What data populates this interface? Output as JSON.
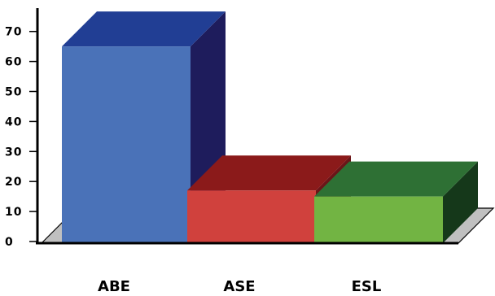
{
  "chart_data": {
    "type": "bar",
    "categories": [
      "ABE",
      "ASE",
      "ESL"
    ],
    "values": [
      65,
      17,
      15
    ],
    "title": "",
    "xlabel": "",
    "ylabel": "",
    "ylim": [
      0,
      75
    ],
    "yticks": [
      0,
      10,
      20,
      30,
      40,
      50,
      60,
      70
    ],
    "ytick_labels": [
      "0",
      "10",
      "20",
      "30",
      "40",
      "50",
      "60",
      "70"
    ],
    "grid": false,
    "style": "3d",
    "colors": [
      {
        "front": "#4A72B8",
        "top": "#213E94",
        "side": "#1E1C5C"
      },
      {
        "front": "#D0413D",
        "top": "#8B1A1A",
        "side": "#6B1518"
      },
      {
        "front": "#72B443",
        "top": "#2E7034",
        "side": "#15381A"
      }
    ],
    "floor_color": "#C0C0C0"
  }
}
